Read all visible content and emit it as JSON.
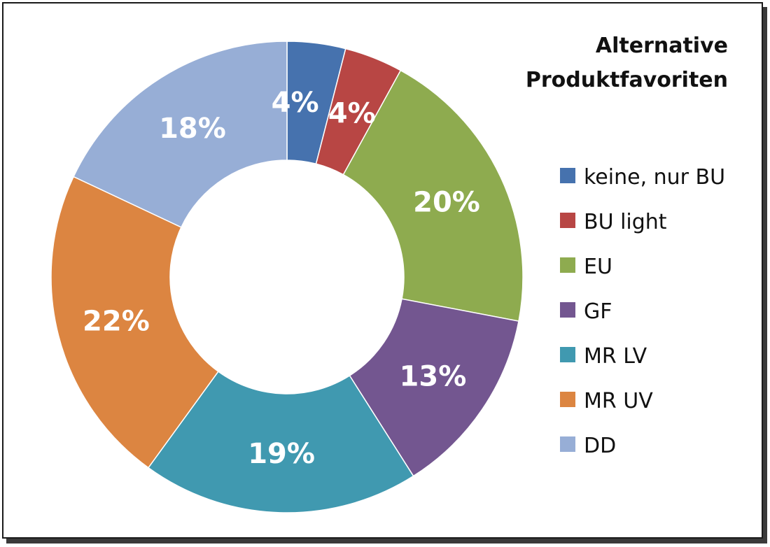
{
  "chart_data": {
    "type": "pie",
    "donut": true,
    "title": "Alternative Produktfavoriten",
    "title_lines": [
      "Alternative",
      "Produktfavoriten"
    ],
    "legend_position": "right",
    "slices": [
      {
        "label": "keine, nur BU",
        "value": 4,
        "value_label": "4%",
        "color": "#4672AE"
      },
      {
        "label": "BU light",
        "value": 4,
        "value_label": "4%",
        "color": "#B84644"
      },
      {
        "label": "EU",
        "value": 20,
        "value_label": "20%",
        "color": "#8EAB4F"
      },
      {
        "label": "GF",
        "value": 13,
        "value_label": "13%",
        "color": "#735690"
      },
      {
        "label": "MR LV",
        "value": 19,
        "value_label": "19%",
        "color": "#4099B0"
      },
      {
        "label": "MR UV",
        "value": 22,
        "value_label": "22%",
        "color": "#DC8541"
      },
      {
        "label": "DD",
        "value": 18,
        "value_label": "18%",
        "color": "#97AED6"
      }
    ]
  }
}
